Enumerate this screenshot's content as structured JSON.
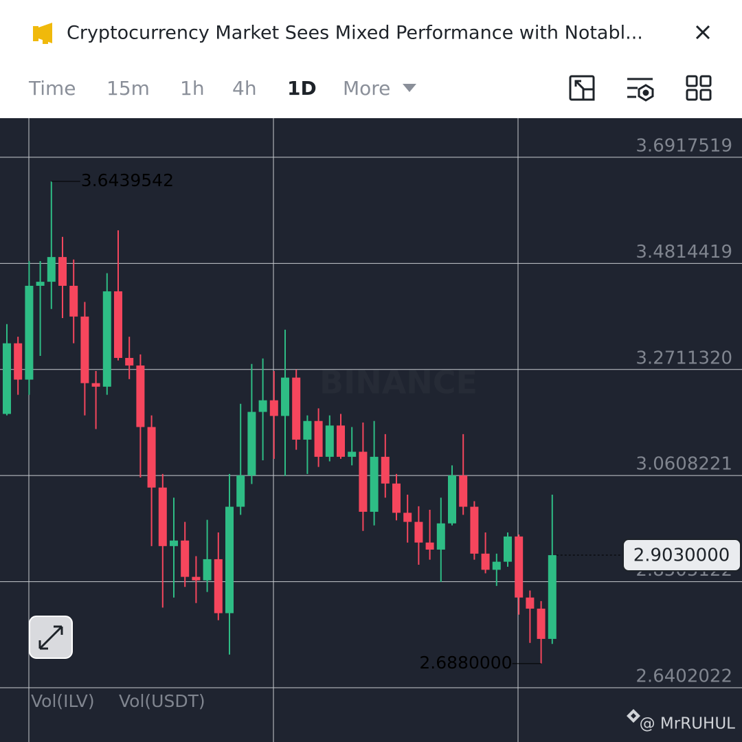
{
  "header": {
    "title": "Cryptocurrency Market Sees Mixed Performance with Notabl..."
  },
  "tabs": [
    "Time",
    "15m",
    "1h",
    "4h",
    "1D",
    "More"
  ],
  "active_tab": 4,
  "chart_data": {
    "type": "candlestick",
    "watermark": "BINANCE",
    "open": [
      3.183,
      3.323,
      3.251,
      3.437,
      3.445,
      3.494,
      3.437,
      3.376,
      3.244,
      3.237,
      3.426,
      3.294,
      3.279,
      3.157,
      3.037,
      2.921,
      2.932,
      2.86,
      2.853,
      2.895,
      2.788,
      2.999,
      3.061,
      3.187,
      3.21,
      3.179,
      3.255,
      3.132,
      3.169,
      3.098,
      3.16,
      3.098,
      3.108,
      2.989,
      3.098,
      3.045,
      2.987,
      2.969,
      2.928,
      2.914,
      2.966,
      3.061,
      2.999,
      2.906,
      2.874,
      2.89,
      2.94,
      2.819,
      2.797,
      2.737
    ],
    "high": [
      3.361,
      3.336,
      3.486,
      3.486,
      3.6439542,
      3.534,
      3.489,
      3.405,
      3.268,
      3.462,
      3.547,
      3.336,
      3.301,
      3.18,
      3.064,
      3.017,
      2.969,
      2.901,
      2.973,
      2.948,
      3.064,
      3.203,
      3.282,
      3.293,
      3.268,
      3.35,
      3.271,
      3.18,
      3.194,
      3.18,
      3.183,
      3.157,
      3.166,
      3.169,
      3.143,
      3.064,
      3.023,
      3.0,
      2.993,
      3.017,
      3.081,
      3.143,
      3.01,
      2.948,
      2.906,
      2.948,
      2.944,
      2.833,
      2.812,
      3.023
    ],
    "low": [
      3.18,
      3.221,
      3.221,
      3.298,
      3.391,
      3.373,
      3.323,
      3.18,
      3.153,
      3.221,
      3.289,
      3.252,
      3.057,
      2.921,
      2.799,
      2.819,
      2.84,
      2.808,
      2.83,
      2.774,
      2.706,
      2.983,
      3.044,
      3.091,
      3.094,
      3.06,
      3.112,
      3.064,
      3.078,
      3.089,
      3.094,
      3.081,
      2.951,
      2.962,
      3.017,
      2.972,
      2.928,
      2.884,
      2.894,
      2.85,
      2.962,
      2.983,
      2.894,
      2.867,
      2.842,
      2.88,
      2.785,
      2.729,
      2.688,
      2.727
    ],
    "close": [
      3.323,
      3.251,
      3.437,
      3.445,
      3.494,
      3.437,
      3.376,
      3.244,
      3.237,
      3.426,
      3.294,
      3.279,
      3.157,
      3.037,
      2.921,
      2.932,
      2.86,
      2.853,
      2.895,
      2.788,
      2.999,
      3.061,
      3.187,
      3.21,
      3.179,
      3.255,
      3.132,
      3.169,
      3.098,
      3.16,
      3.098,
      3.108,
      2.989,
      3.098,
      3.045,
      2.987,
      2.969,
      2.928,
      2.914,
      2.966,
      3.061,
      2.999,
      2.906,
      2.874,
      2.89,
      2.94,
      2.819,
      2.797,
      2.737,
      2.903
    ],
    "up_color": "#2ebd85",
    "down_color": "#f6465d",
    "ylim": [
      2.6402022,
      3.7693
    ],
    "yticks": [
      3.6917519,
      3.4814419,
      {
        "value": 3.271132,
        "label": "3.2711320"
      },
      3.0608221,
      2.8505122,
      2.6402022
    ],
    "grid": true,
    "annotations": [
      {
        "kind": "high",
        "index": 4,
        "value": 3.6439542,
        "label": "3.6439542"
      },
      {
        "kind": "low",
        "index": 48,
        "value": 2.688,
        "label": "2.6880000"
      },
      {
        "kind": "last",
        "index": 49,
        "value": 2.903,
        "label": "2.9030000"
      }
    ],
    "indicators": [
      "Vol(ILV)",
      "Vol(USDT)"
    ]
  },
  "footer": {
    "credit": "@ MrRUHUL"
  }
}
